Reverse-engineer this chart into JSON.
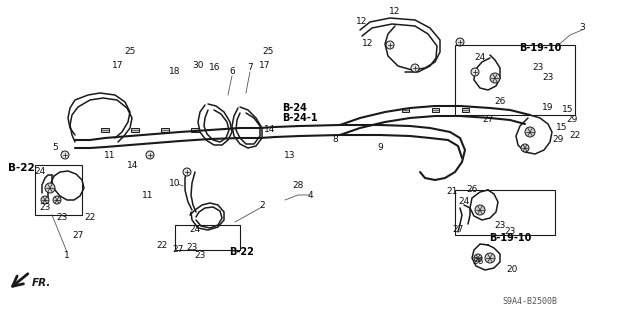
{
  "bg_color": "#ffffff",
  "line_color": "#1a1a1a",
  "text_color": "#111111",
  "bold_color": "#000000",
  "gray_color": "#555555",
  "fig_width": 6.4,
  "fig_height": 3.2,
  "model_code": "S9A4-B2500B",
  "B22_left_label": "B-22",
  "B22_bottom_label": "B-22",
  "B24_label": "B-24",
  "B241_label": "B-24-1",
  "B1910_top_label": "B-19-10",
  "B1910_bottom_label": "B-19-10",
  "FR_label": "FR.",
  "xlim": [
    0,
    640
  ],
  "ylim": [
    0,
    320
  ]
}
